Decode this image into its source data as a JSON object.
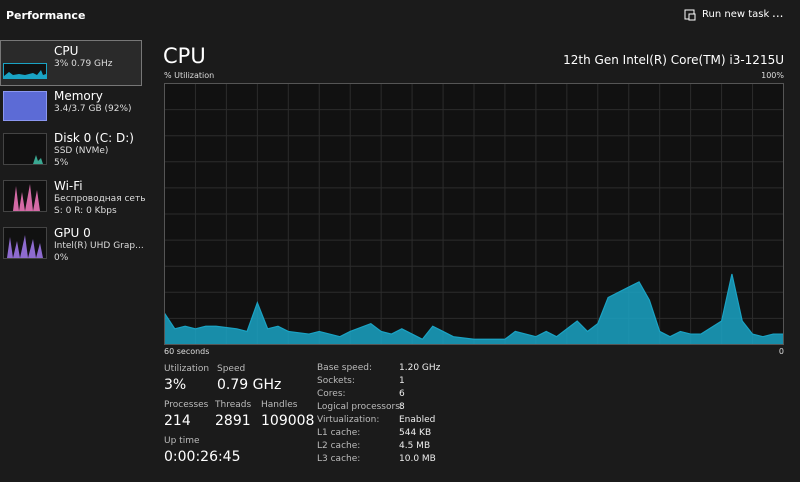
{
  "header": {
    "title": "Performance",
    "run_new_task": "Run new task",
    "more": "..."
  },
  "sidebar": [
    {
      "name": "CPU",
      "lines": [
        "3% 0.79 GHz"
      ]
    },
    {
      "name": "Memory",
      "lines": [
        "3.4/3.7 GB (92%)"
      ]
    },
    {
      "name": "Disk 0 (C: D:)",
      "lines": [
        "SSD (NVMe)",
        "5%"
      ]
    },
    {
      "name": "Wi-Fi",
      "lines": [
        "Беспроводная сеть",
        "S: 0 R: 0 Kbps"
      ]
    },
    {
      "name": "GPU 0",
      "lines": [
        "Intel(R) UHD Grap...",
        "0%"
      ]
    }
  ],
  "main": {
    "title": "CPU",
    "processor": "12th Gen Intel(R) Core(TM) i3-1215U"
  },
  "chart_data": {
    "type": "area",
    "y_label": "% Utilization",
    "y_max_label": "100%",
    "x_start_label": "60 seconds",
    "x_end_label": "0",
    "x": [
      60,
      59,
      58,
      57,
      56,
      55,
      53,
      52,
      51,
      50,
      49,
      48,
      46,
      45,
      43,
      42,
      40,
      39,
      38,
      37,
      35,
      34,
      33,
      32,
      30,
      28,
      27,
      26,
      24,
      23,
      22,
      20,
      19,
      18,
      17,
      16,
      15,
      14,
      13,
      12,
      11,
      10,
      9,
      8,
      6,
      5,
      4,
      3,
      2,
      1,
      0
    ],
    "values": [
      12,
      6,
      7,
      6,
      7,
      7,
      6,
      5,
      16,
      6,
      7,
      5,
      4,
      5,
      3,
      5,
      8,
      5,
      4,
      6,
      2,
      7,
      5,
      3,
      2,
      2,
      2,
      5,
      3,
      5,
      3,
      9,
      5,
      8,
      18,
      20,
      22,
      24,
      17,
      5,
      3,
      5,
      4,
      4,
      9,
      27,
      9,
      4,
      3,
      4,
      4
    ],
    "xlim": [
      60,
      0
    ],
    "ylim": [
      0,
      100
    ],
    "color": "#1aa3c4"
  },
  "stats": [
    {
      "label": "Utilization",
      "value": "3%"
    },
    {
      "label": "Speed",
      "value": "0.79 GHz"
    },
    {
      "label": "Processes",
      "value": 214
    },
    {
      "label": "Threads",
      "value": 2891
    },
    {
      "label": "Handles",
      "value": 109008
    },
    {
      "label": "Up time",
      "value": "0:00:26:45"
    }
  ],
  "specs": [
    {
      "label": "Base speed:",
      "value": "1.20 GHz"
    },
    {
      "label": "Sockets:",
      "value": "1"
    },
    {
      "label": "Cores:",
      "value": "6"
    },
    {
      "label": "Logical processors:",
      "value": "8"
    },
    {
      "label": "Virtualization:",
      "value": "Enabled"
    },
    {
      "label": "L1 cache:",
      "value": "544 KB"
    },
    {
      "label": "L2 cache:",
      "value": "4.5 MB"
    },
    {
      "label": "L3 cache:",
      "value": "10.0 MB"
    }
  ]
}
